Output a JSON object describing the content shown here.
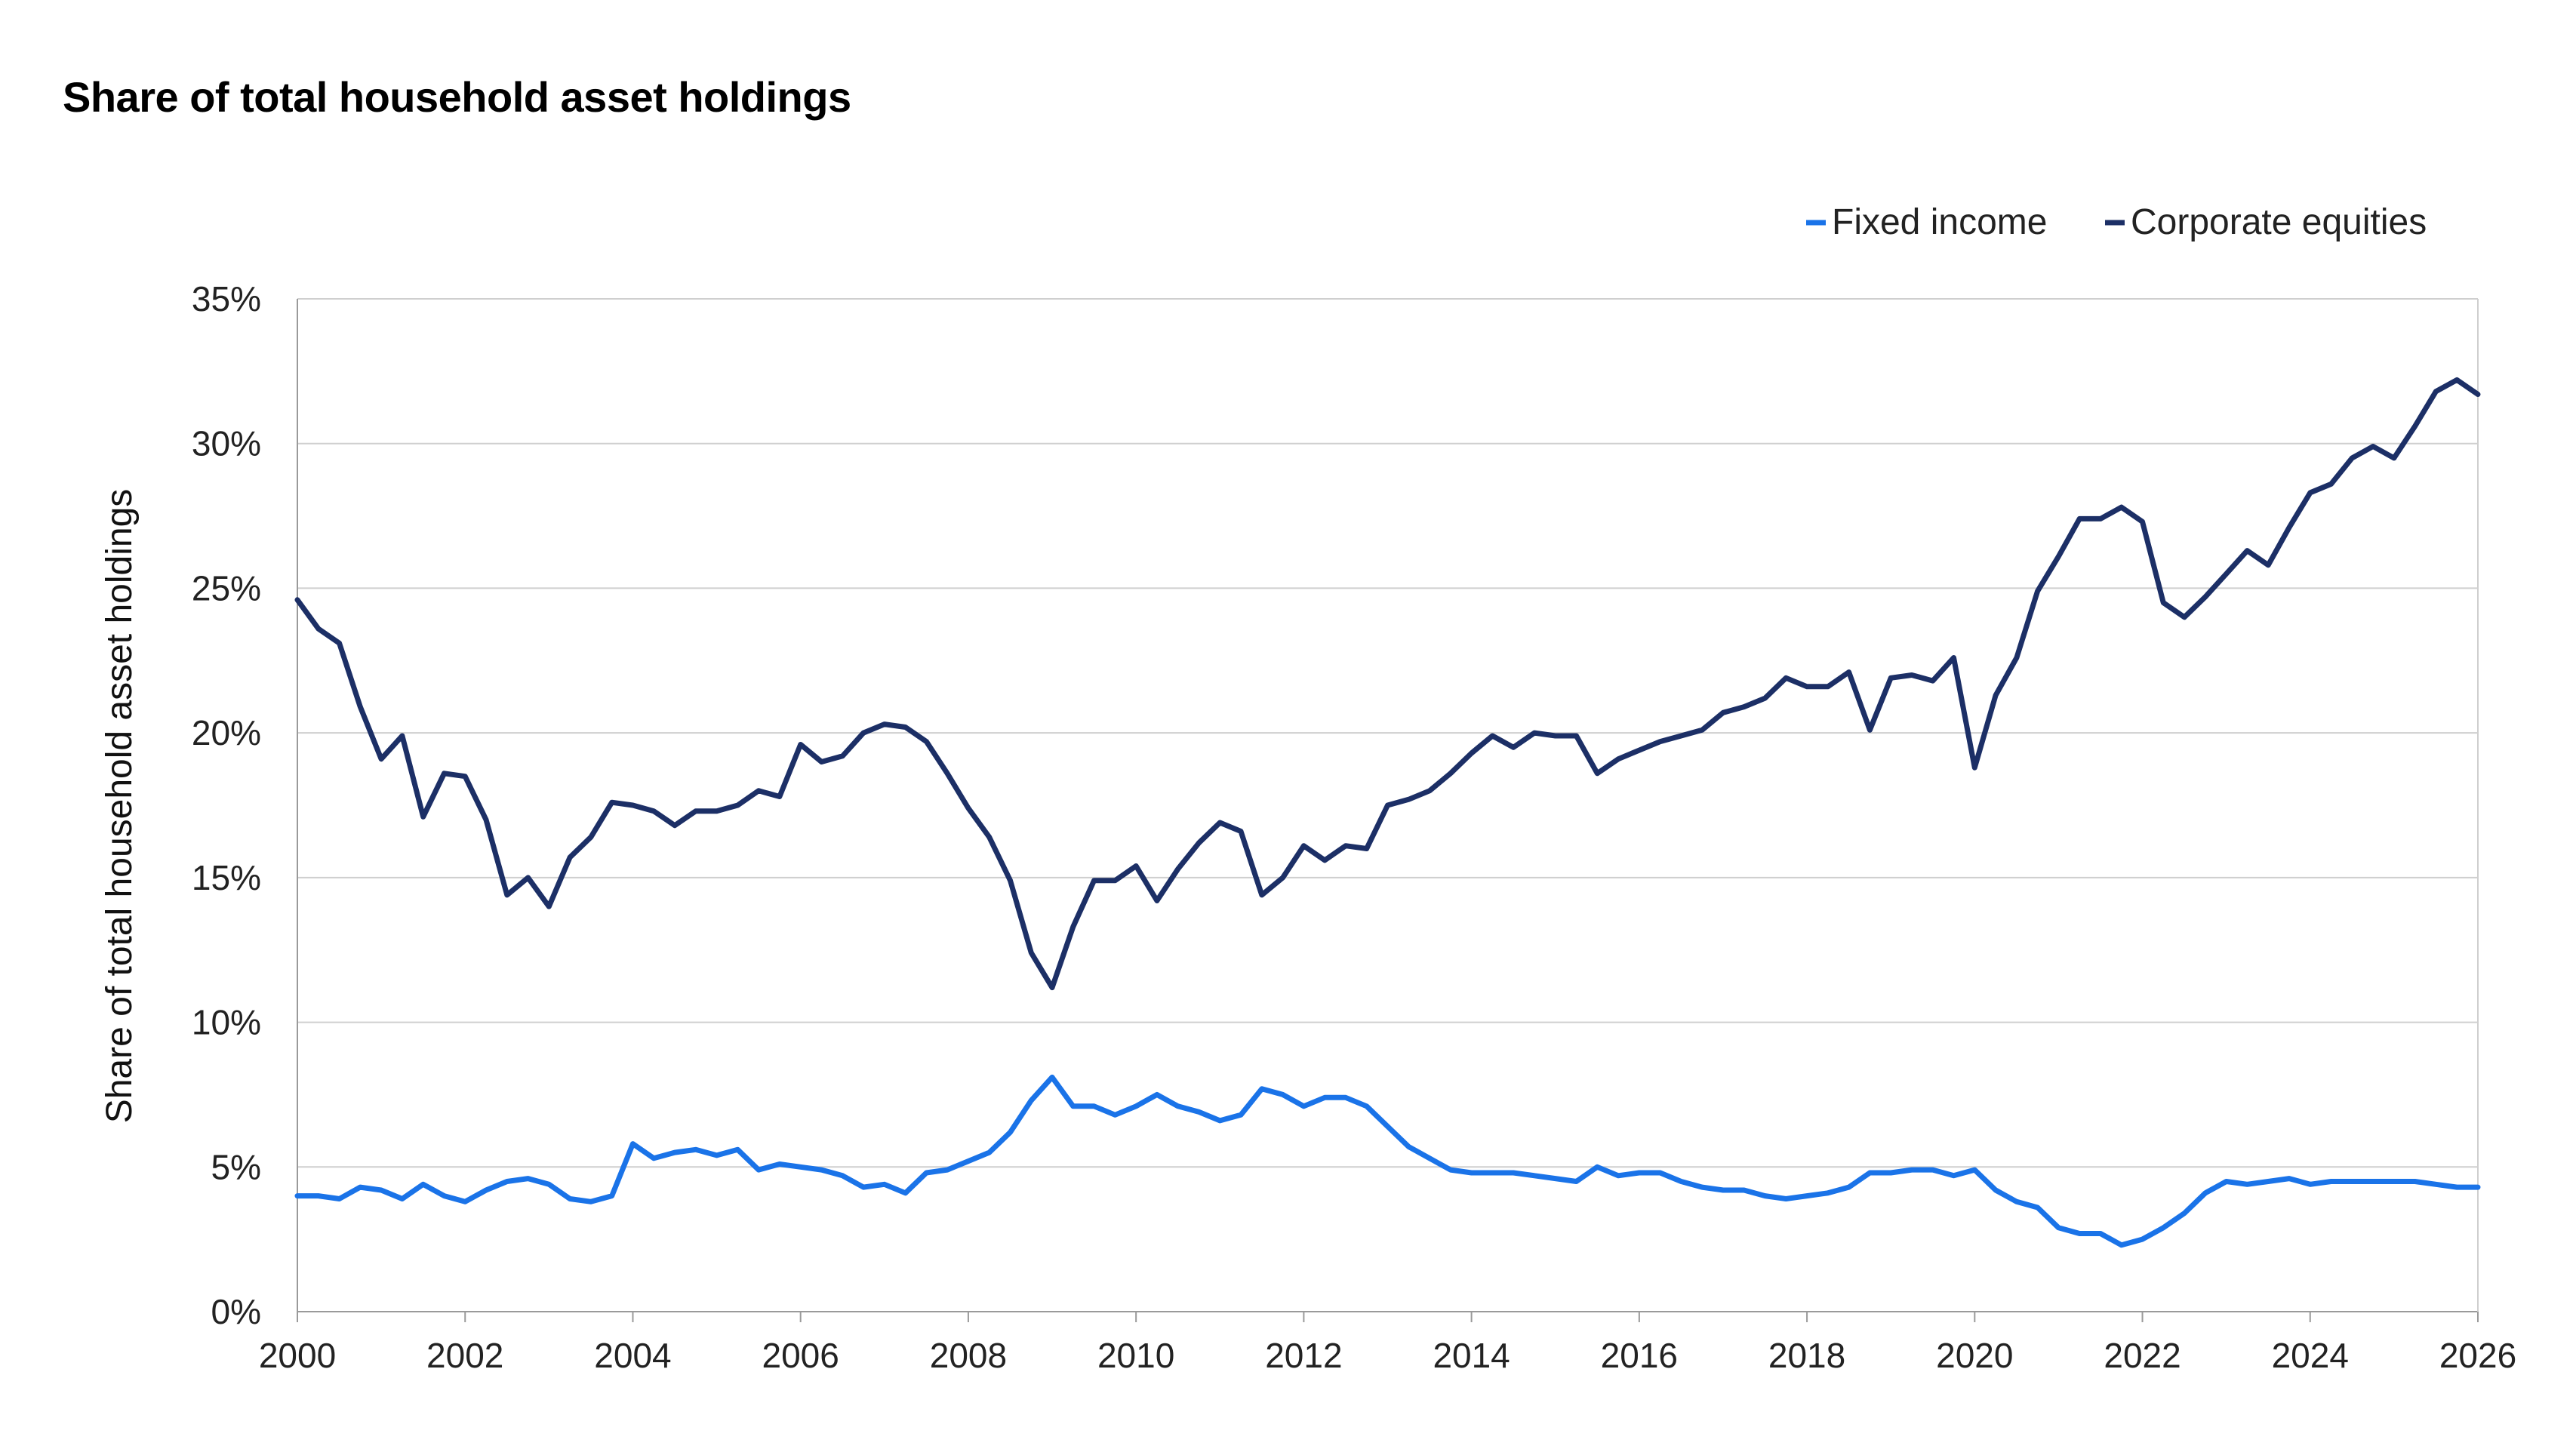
{
  "chart_data": {
    "type": "line",
    "title": "Share of total household asset holdings",
    "ylabel": "Share of total household asset holdings",
    "xlabel": "",
    "xlim": [
      2000,
      2026
    ],
    "ylim": [
      0,
      35
    ],
    "x_ticks": [
      "2000",
      "2002",
      "2004",
      "2006",
      "2008",
      "2010",
      "2012",
      "2014",
      "2016",
      "2018",
      "2020",
      "2022",
      "2024",
      "2026"
    ],
    "y_ticks": [
      "0%",
      "5%",
      "10%",
      "15%",
      "20%",
      "25%",
      "30%",
      "35%"
    ],
    "grid": "horizontal",
    "legend_position": "top-right",
    "colors": {
      "Fixed income": "#1a73e8",
      "Corporate equities": "#1c2f66"
    },
    "x": [
      2000.0,
      2000.25,
      2000.5,
      2000.75,
      2001.0,
      2001.25,
      2001.5,
      2001.75,
      2002.0,
      2002.25,
      2002.5,
      2002.75,
      2003.0,
      2003.25,
      2003.5,
      2003.75,
      2004.0,
      2004.25,
      2004.5,
      2004.75,
      2005.0,
      2005.25,
      2005.5,
      2005.75,
      2006.0,
      2006.25,
      2006.5,
      2006.75,
      2007.0,
      2007.25,
      2007.5,
      2007.75,
      2008.0,
      2008.25,
      2008.5,
      2008.75,
      2009.0,
      2009.25,
      2009.5,
      2009.75,
      2010.0,
      2010.25,
      2010.5,
      2010.75,
      2011.0,
      2011.25,
      2011.5,
      2011.75,
      2012.0,
      2012.25,
      2012.5,
      2012.75,
      2013.0,
      2013.25,
      2013.5,
      2013.75,
      2014.0,
      2014.25,
      2014.5,
      2014.75,
      2015.0,
      2015.25,
      2015.5,
      2015.75,
      2016.0,
      2016.25,
      2016.5,
      2016.75,
      2017.0,
      2017.25,
      2017.5,
      2017.75,
      2018.0,
      2018.25,
      2018.5,
      2018.75,
      2019.0,
      2019.25,
      2019.5,
      2019.75,
      2020.0,
      2020.25,
      2020.5,
      2020.75,
      2021.0,
      2021.25,
      2021.5,
      2021.75,
      2022.0,
      2022.25,
      2022.5,
      2022.75,
      2023.0,
      2023.25,
      2023.5,
      2023.75,
      2024.0,
      2024.25,
      2024.5,
      2024.75,
      2025.0,
      2025.25,
      2025.5,
      2025.75,
      2026.0
    ],
    "series": [
      {
        "name": "Fixed income",
        "values": [
          4.0,
          4.0,
          3.9,
          4.3,
          4.2,
          3.9,
          4.4,
          4.0,
          3.8,
          4.2,
          4.5,
          4.6,
          4.4,
          3.9,
          3.8,
          4.0,
          5.8,
          5.3,
          5.5,
          5.6,
          5.4,
          5.6,
          4.9,
          5.1,
          5.0,
          4.9,
          4.7,
          4.3,
          4.4,
          4.1,
          4.8,
          4.9,
          5.2,
          5.5,
          6.2,
          7.3,
          8.1,
          7.1,
          7.1,
          6.8,
          7.1,
          7.5,
          7.1,
          6.9,
          6.6,
          6.8,
          7.7,
          7.5,
          7.1,
          7.4,
          7.4,
          7.1,
          6.4,
          5.7,
          5.3,
          4.9,
          4.8,
          4.8,
          4.8,
          4.7,
          4.6,
          4.5,
          5.0,
          4.7,
          4.8,
          4.8,
          4.5,
          4.3,
          4.2,
          4.2,
          4.0,
          3.9,
          4.0,
          4.1,
          4.3,
          4.8,
          4.8,
          4.9,
          4.9,
          4.7,
          4.9,
          4.2,
          3.8,
          3.6,
          2.9,
          2.7,
          2.7,
          2.3,
          2.5,
          2.9,
          3.4,
          4.1,
          4.5,
          4.4,
          4.5,
          4.6,
          4.4,
          4.5,
          4.5,
          4.5,
          4.5,
          4.5,
          4.4,
          4.3,
          4.3
        ]
      },
      {
        "name": "Corporate equities",
        "values": [
          24.6,
          23.6,
          23.1,
          20.9,
          19.1,
          19.9,
          17.1,
          18.6,
          18.5,
          17.0,
          14.4,
          15.0,
          14.0,
          15.7,
          16.4,
          17.6,
          17.5,
          17.3,
          16.8,
          17.3,
          17.3,
          17.5,
          18.0,
          17.8,
          19.6,
          19.0,
          19.2,
          20.0,
          20.3,
          20.2,
          19.7,
          18.6,
          17.4,
          16.4,
          14.9,
          12.4,
          11.2,
          13.3,
          14.9,
          14.9,
          15.4,
          14.2,
          15.3,
          16.2,
          16.9,
          16.6,
          14.4,
          15.0,
          16.1,
          15.6,
          16.1,
          16.0,
          17.5,
          17.7,
          18.0,
          18.6,
          19.3,
          19.9,
          19.5,
          20.0,
          19.9,
          19.9,
          18.6,
          19.1,
          19.4,
          19.7,
          19.9,
          20.1,
          20.7,
          20.9,
          21.2,
          21.9,
          21.6,
          21.6,
          22.1,
          20.1,
          21.9,
          22.0,
          21.8,
          22.6,
          18.8,
          21.3,
          22.6,
          24.9,
          26.1,
          27.4,
          27.4,
          27.8,
          27.3,
          24.5,
          24.0,
          24.7,
          25.5,
          26.3,
          25.8,
          27.1,
          28.3,
          28.6,
          29.5,
          29.9,
          29.5,
          30.6,
          31.8,
          32.2,
          31.7
        ]
      }
    ]
  }
}
